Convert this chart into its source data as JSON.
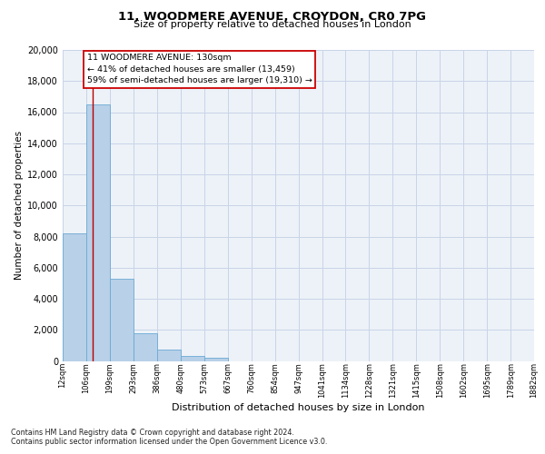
{
  "title_line1": "11, WOODMERE AVENUE, CROYDON, CR0 7PG",
  "title_line2": "Size of property relative to detached houses in London",
  "xlabel": "Distribution of detached houses by size in London",
  "ylabel": "Number of detached properties",
  "bin_labels": [
    "12sqm",
    "106sqm",
    "199sqm",
    "293sqm",
    "386sqm",
    "480sqm",
    "573sqm",
    "667sqm",
    "760sqm",
    "854sqm",
    "947sqm",
    "1041sqm",
    "1134sqm",
    "1228sqm",
    "1321sqm",
    "1415sqm",
    "1508sqm",
    "1602sqm",
    "1695sqm",
    "1789sqm",
    "1882sqm"
  ],
  "bar_values": [
    8200,
    16500,
    5300,
    1800,
    750,
    300,
    200,
    0,
    0,
    0,
    0,
    0,
    0,
    0,
    0,
    0,
    0,
    0,
    0,
    0
  ],
  "bar_color": "#b8d0e8",
  "bar_edge_color": "#6aaad4",
  "grid_color": "#c8d4e8",
  "background_color": "#edf2f8",
  "ylim": [
    0,
    20000
  ],
  "yticks": [
    0,
    2000,
    4000,
    6000,
    8000,
    10000,
    12000,
    14000,
    16000,
    18000,
    20000
  ],
  "property_label": "11 WOODMERE AVENUE: 130sqm",
  "annotation_line1": "← 41% of detached houses are smaller (13,459)",
  "annotation_line2": "59% of semi-detached houses are larger (19,310) →",
  "red_line_x": 130,
  "bin_edges": [
    12,
    106,
    199,
    293,
    386,
    480,
    573,
    667,
    760,
    854,
    947,
    1041,
    1134,
    1228,
    1321,
    1415,
    1508,
    1602,
    1695,
    1789,
    1882
  ],
  "footnote1": "Contains HM Land Registry data © Crown copyright and database right 2024.",
  "footnote2": "Contains public sector information licensed under the Open Government Licence v3.0."
}
